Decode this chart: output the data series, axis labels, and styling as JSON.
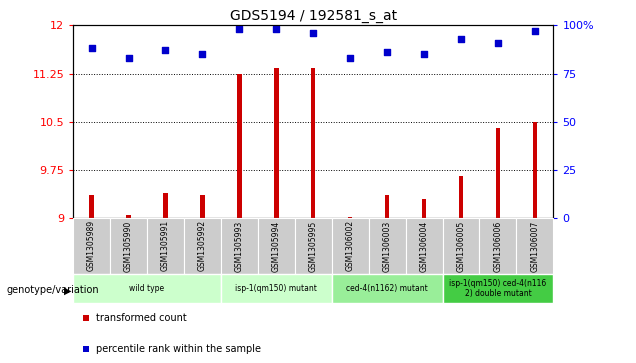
{
  "title": "GDS5194 / 192581_s_at",
  "samples": [
    "GSM1305989",
    "GSM1305990",
    "GSM1305991",
    "GSM1305992",
    "GSM1305993",
    "GSM1305994",
    "GSM1305995",
    "GSM1306002",
    "GSM1306003",
    "GSM1306004",
    "GSM1306005",
    "GSM1306006",
    "GSM1306007"
  ],
  "transformed_count": [
    9.35,
    9.05,
    9.38,
    9.35,
    11.25,
    11.33,
    11.33,
    9.01,
    9.35,
    9.3,
    9.65,
    10.4,
    10.5
  ],
  "percentile_rank": [
    88,
    83,
    87,
    85,
    98,
    98,
    96,
    83,
    86,
    85,
    93,
    91,
    97
  ],
  "ylim_left": [
    9.0,
    12.0
  ],
  "ylim_right": [
    0,
    100
  ],
  "yticks_left": [
    9.0,
    9.75,
    10.5,
    11.25,
    12.0
  ],
  "yticks_right": [
    0,
    25,
    50,
    75,
    100
  ],
  "yticklabels_left": [
    "9",
    "9.75",
    "10.5",
    "11.25",
    "12"
  ],
  "yticklabels_right": [
    "0",
    "25",
    "50",
    "75",
    "100%"
  ],
  "bar_color": "#cc0000",
  "dot_color": "#0000cc",
  "bar_bottom": 9.0,
  "bar_width": 0.12,
  "groups": [
    {
      "label": "wild type",
      "indices": [
        0,
        1,
        2,
        3
      ],
      "color": "#ccffcc"
    },
    {
      "label": "isp-1(qm150) mutant",
      "indices": [
        4,
        5,
        6
      ],
      "color": "#ccffcc"
    },
    {
      "label": "ced-4(n1162) mutant",
      "indices": [
        7,
        8,
        9
      ],
      "color": "#99ee99"
    },
    {
      "label": "isp-1(qm150) ced-4(n116\n2) double mutant",
      "indices": [
        10,
        11,
        12
      ],
      "color": "#44cc44"
    }
  ],
  "legend_items": [
    {
      "label": "transformed count",
      "color": "#cc0000"
    },
    {
      "label": "percentile rank within the sample",
      "color": "#0000cc"
    }
  ],
  "grid_yticks": [
    9.75,
    10.5,
    11.25
  ],
  "plot_bg_color": "#ffffff",
  "sample_box_color": "#cccccc"
}
